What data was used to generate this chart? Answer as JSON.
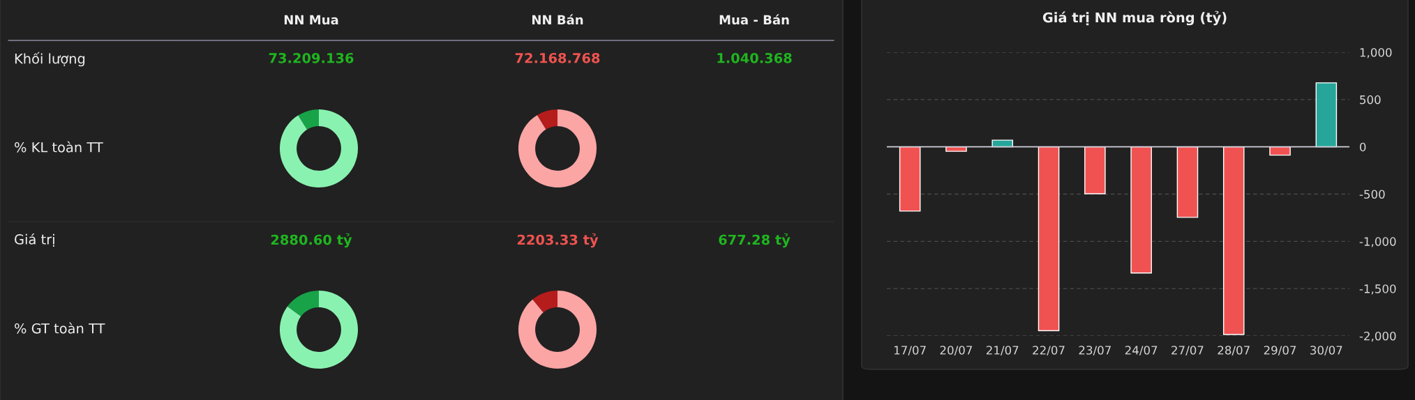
{
  "chart_data": [
    {
      "type": "other",
      "categories": [
        "NN Mua",
        "NN Bán",
        "Mua - Bán"
      ],
      "y_categories": [
        "Khối lượng",
        "% KL toàn TT",
        "Giá trị",
        "% GT toàn TT"
      ],
      "colors": [
        "#1fb51f",
        "#ef5350",
        "#1fb51f"
      ],
      "cell_labels": [
        [
          "73.209.136",
          "72.168.768",
          "1.040.368"
        ],
        [
          null,
          null,
          null
        ],
        [
          "2880.60 tỷ",
          "2203.33 tỷ",
          "677.28 tỷ"
        ],
        [
          null,
          null,
          null
        ]
      ]
    },
    {
      "type": "donut",
      "categories": [
        null,
        null
      ],
      "values": [
        8.9,
        91.1
      ],
      "colors": [
        "#18a349",
        "#8af2b0"
      ]
    },
    {
      "type": "donut",
      "categories": [
        null,
        null
      ],
      "values": [
        8.7,
        91.3
      ],
      "colors": [
        "#b51c1c",
        "#fca5a5"
      ]
    },
    {
      "type": "donut",
      "categories": [
        null,
        null
      ],
      "values": [
        14.9,
        85.1
      ],
      "colors": [
        "#18a349",
        "#8af2b0"
      ]
    },
    {
      "type": "donut",
      "categories": [
        null,
        null
      ],
      "values": [
        11,
        89
      ],
      "colors": [
        "#b51c1c",
        "#fca5a5"
      ]
    },
    {
      "type": "bar",
      "title": "Giá trị NN mua ròng (tỷ)",
      "categories": [
        "17/07",
        "20/07",
        "21/07",
        "22/07",
        "23/07",
        "24/07",
        "27/07",
        "28/07",
        "29/07",
        "30/07"
      ],
      "values": [
        -680,
        -48,
        70,
        -1945,
        -496,
        -1335,
        -746,
        -1985,
        -88,
        677
      ],
      "colors": [
        "#f05252",
        "#f05252",
        "#26a69a",
        "#f05252",
        "#f05252",
        "#f05252",
        "#f05252",
        "#f05252",
        "#f05252",
        "#26a69a"
      ],
      "ylim": [
        -2000,
        1000
      ],
      "yticks": [
        {
          "value": 1000,
          "label": "1,000"
        },
        500,
        0,
        {
          "value": -500,
          "label": "-500"
        },
        {
          "value": -1000,
          "label": "-1,000"
        },
        {
          "value": -1500,
          "label": "-1,500"
        },
        {
          "value": -2000,
          "label": "-2,000"
        }
      ],
      "grid": "y",
      "ref_lines": [
        {
          "axis": "y",
          "value": 0,
          "color": "#d0d0dc"
        }
      ]
    }
  ]
}
